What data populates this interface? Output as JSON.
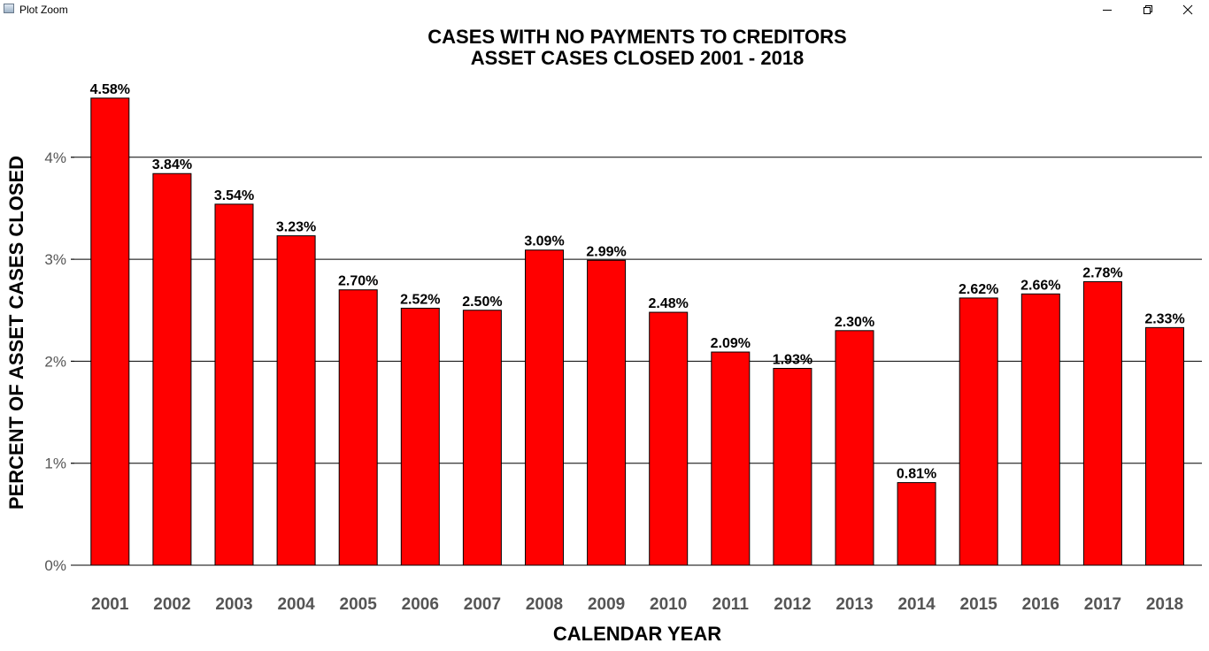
{
  "window": {
    "title": "Plot Zoom"
  },
  "icons": {
    "app": "plot-window-icon",
    "minimize": "minimize-icon",
    "maximize": "restore-icon",
    "close": "close-icon"
  },
  "colors": {
    "bar": "#ff0000",
    "bar_outline": "#000000",
    "grid": "#000000",
    "tick_label": "#555555"
  },
  "chart_data": {
    "type": "bar",
    "title": "CASES WITH NO PAYMENTS TO CREDITORS",
    "subtitle": "ASSET CASES CLOSED 2001 - 2018",
    "xlabel": "CALENDAR YEAR",
    "ylabel": "PERCENT OF ASSET CASES CLOSED",
    "categories": [
      "2001",
      "2002",
      "2003",
      "2004",
      "2005",
      "2006",
      "2007",
      "2008",
      "2009",
      "2010",
      "2011",
      "2012",
      "2013",
      "2014",
      "2015",
      "2016",
      "2017",
      "2018"
    ],
    "values": [
      4.58,
      3.84,
      3.54,
      3.23,
      2.7,
      2.52,
      2.5,
      3.09,
      2.99,
      2.48,
      2.09,
      1.93,
      2.3,
      0.81,
      2.62,
      2.66,
      2.78,
      2.33
    ],
    "data_labels": [
      "4.58%",
      "3.84%",
      "3.54%",
      "3.23%",
      "2.70%",
      "2.52%",
      "2.50%",
      "3.09%",
      "2.99%",
      "2.48%",
      "2.09%",
      "1.93%",
      "2.30%",
      "0.81%",
      "2.62%",
      "2.66%",
      "2.78%",
      "2.33%"
    ],
    "yticks": [
      0,
      1,
      2,
      3,
      4
    ],
    "ytick_labels": [
      "0%",
      "1%",
      "2%",
      "3%",
      "4%"
    ],
    "ylim": [
      0,
      4.75
    ],
    "grid": true,
    "legend": "none"
  }
}
